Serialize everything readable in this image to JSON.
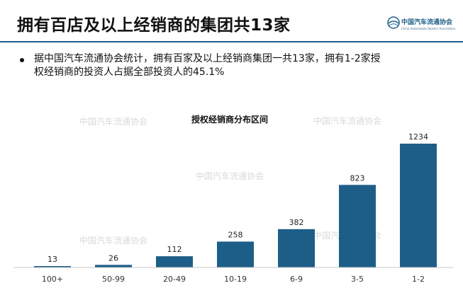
{
  "slide": {
    "title": "拥有百店及以上经销商的集团共13家",
    "logo": {
      "text": "中国汽车流通协会",
      "sub": "China Automobile Dealers Association"
    },
    "bullet": {
      "line1": "据中国汽车流通协会统计，拥有百家及以上经销商集团一共13家，拥有1-2家授",
      "line2": "权经销商的投资人占据全部投资人的45.1%"
    },
    "watermark": "中国汽车流通协会",
    "accent_color": "#1f5f86",
    "bar_color": "#1d5e89"
  },
  "chart_data": {
    "type": "bar",
    "title": "授权经销商分布区间",
    "categories": [
      "100+",
      "50-99",
      "20-49",
      "10-19",
      "6-9",
      "3-5",
      "1-2"
    ],
    "values": [
      13,
      26,
      112,
      258,
      382,
      823,
      1234
    ],
    "xlabel": "",
    "ylabel": "",
    "ylim": [
      0,
      1234
    ],
    "grid": false,
    "legend": "none"
  }
}
